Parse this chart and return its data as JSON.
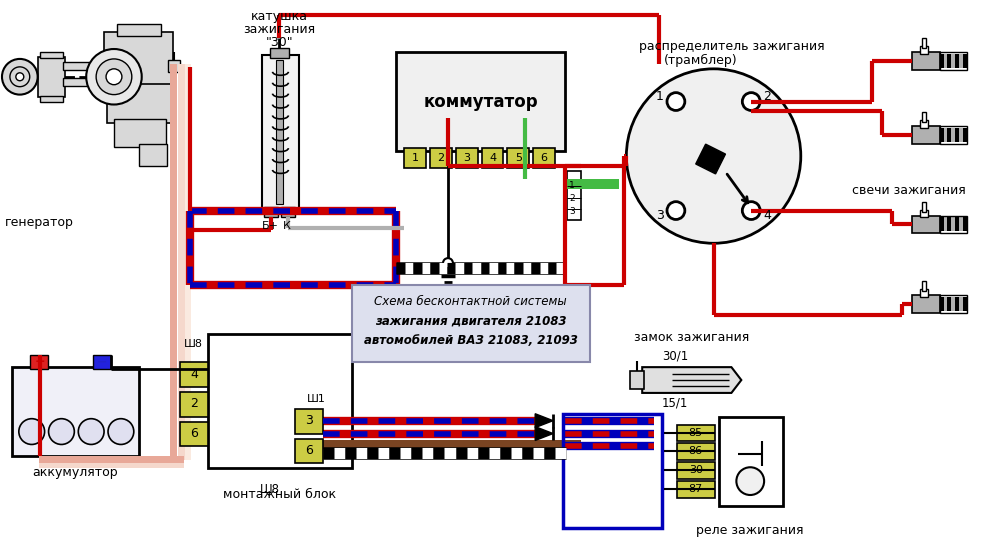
{
  "bg_color": "#ffffff",
  "title_line1": "Схема бесконтактной системы",
  "title_line2": "зажигания двигателя 21083",
  "title_line3": "автомобилей ВАЗ 21083, 21093",
  "lbl_generator": "генератор",
  "lbl_coil1": "катушка",
  "lbl_coil2": "зажигания",
  "lbl_coil3": "\"30\"",
  "lbl_commutator": "коммутатор",
  "lbl_distributor1": "распределитель зажигания",
  "lbl_distributor2": "(трамблер)",
  "lbl_sparks": "свечи зажигания",
  "lbl_battery": "аккумулятор",
  "lbl_mounting": "монтажный блок",
  "lbl_relay": "реле зажигания",
  "lbl_lock": "замок зажигания",
  "lbl_bplus": "Б+",
  "lbl_k": "К",
  "lbl_sh8": "Ш8",
  "lbl_sh1": "Ш1",
  "lbl_301": "30/1",
  "lbl_151": "15/1",
  "red": "#cc0000",
  "blue": "#0000bb",
  "salmon": "#e8a898",
  "salmon2": "#f5d8cc",
  "green_w": "#44bb44",
  "black": "#000000",
  "white": "#ffffff",
  "light_yellow": "#cccc44",
  "gray_light": "#d8d8d8",
  "gray_mid": "#b0b0b0",
  "brown": "#7a4422",
  "title_bg": "#dde0ee",
  "title_edge": "#8888aa"
}
